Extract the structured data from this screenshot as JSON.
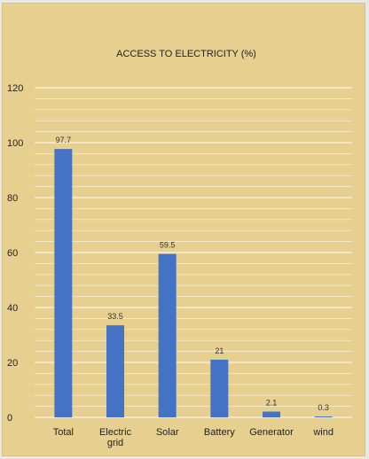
{
  "chart_data": {
    "type": "bar",
    "title": "ACCESS TO ELECTRICITY (%)",
    "xlabel": "",
    "ylabel": "",
    "categories": [
      [
        "Total"
      ],
      [
        "Electric",
        "grid"
      ],
      [
        "Solar"
      ],
      [
        "Battery"
      ],
      [
        "Generator"
      ],
      [
        "wind"
      ]
    ],
    "values": [
      97.7,
      33.5,
      59.5,
      21,
      2.1,
      0.3
    ],
    "data_labels": [
      "97.7",
      "33.5",
      "59.5",
      "21",
      "2.1",
      "0.3"
    ],
    "ylim": [
      0,
      120
    ],
    "yticks": [
      0,
      20,
      40,
      60,
      80,
      100,
      120
    ],
    "grid": true,
    "legend": "none",
    "colors": {
      "bar": "#4472c4",
      "grid": "#ffffff",
      "background": "#e6cf8f"
    }
  }
}
